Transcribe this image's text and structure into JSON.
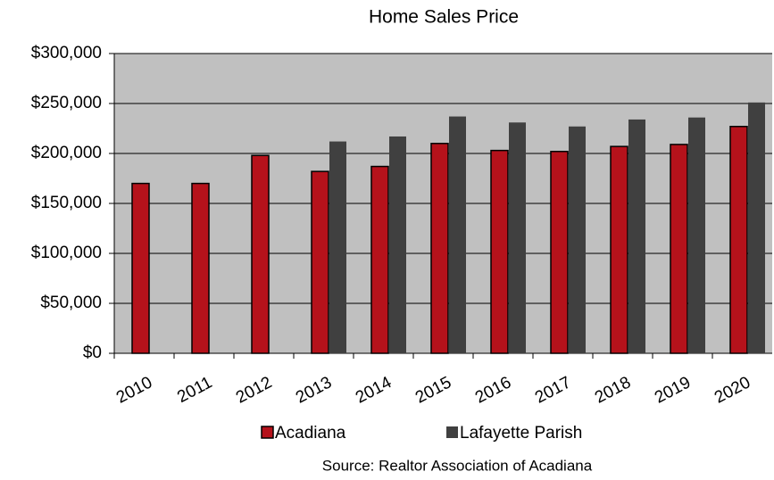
{
  "chart_data": {
    "type": "bar",
    "title": "Home Sales Price",
    "categories": [
      "2010",
      "2011",
      "2012",
      "2013",
      "2014",
      "2015",
      "2016",
      "2017",
      "2018",
      "2019",
      "2020"
    ],
    "series": [
      {
        "name": "Acadiana",
        "color": "#b5121b",
        "values": [
          170000,
          170000,
          198000,
          182000,
          187000,
          210000,
          203000,
          202000,
          207000,
          209000,
          227000
        ]
      },
      {
        "name": "Lafayette Parish",
        "color": "#404040",
        "values": [
          null,
          null,
          null,
          212000,
          217000,
          237000,
          231000,
          227000,
          234000,
          236000,
          251000
        ]
      }
    ],
    "ylim": [
      0,
      300000
    ],
    "yticks": [
      {
        "value": 0,
        "label": "$0"
      },
      {
        "value": 50000,
        "label": "$50,000"
      },
      {
        "value": 100000,
        "label": "$100,000"
      },
      {
        "value": 150000,
        "label": "$150,000"
      },
      {
        "value": 200000,
        "label": "$200,000"
      },
      {
        "value": 250000,
        "label": "$250,000"
      },
      {
        "value": 300000,
        "label": "$300,000"
      }
    ],
    "grid": true,
    "plot_background": "#c0c0c0",
    "source": "Source:  Realtor Association of Acadiana"
  }
}
